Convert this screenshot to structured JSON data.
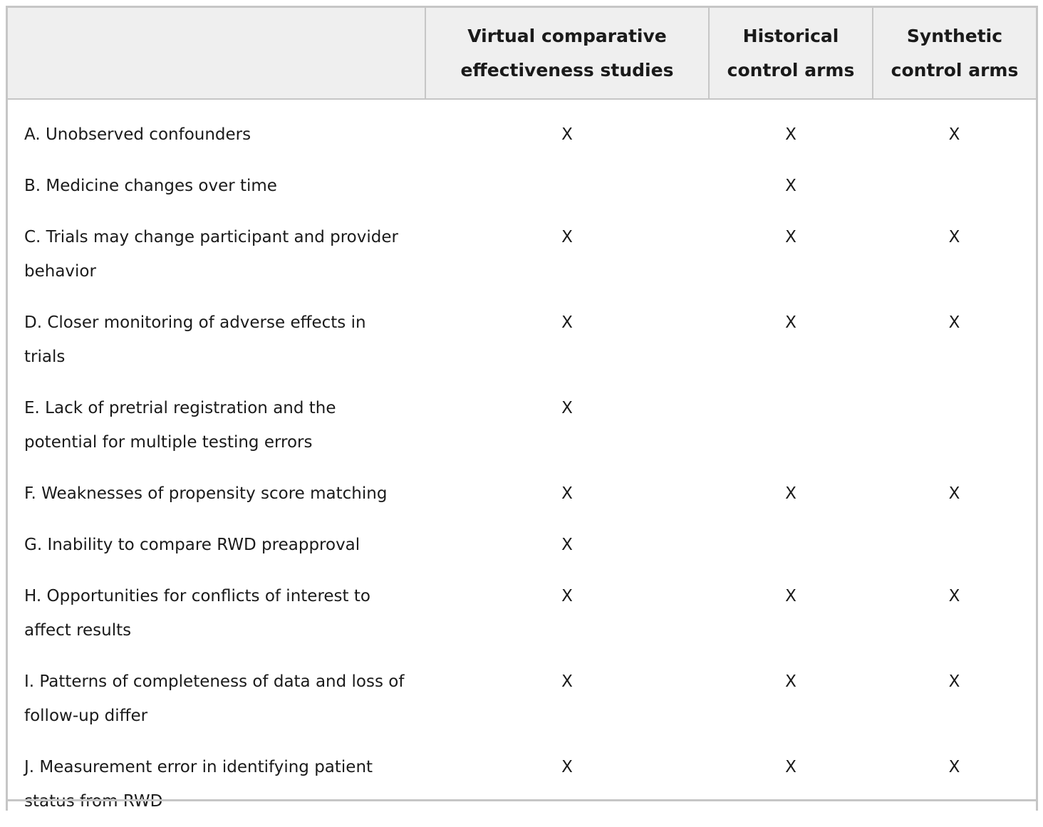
{
  "header": {
    "col0": "",
    "col1": "Virtual comparative effectiveness studies",
    "col2": "Historical control arms",
    "col3": "Synthetic control arms"
  },
  "rows": [
    {
      "label": "A. Unobserved confounders",
      "vces": "X",
      "hca": "X",
      "sca": "X"
    },
    {
      "label": "B. Medicine changes over time",
      "vces": "",
      "hca": "X",
      "sca": ""
    },
    {
      "label": "C. Trials may change participant and provider behavior",
      "vces": "X",
      "hca": "X",
      "sca": "X"
    },
    {
      "label": "D. Closer monitoring of adverse effects in trials",
      "vces": "X",
      "hca": "X",
      "sca": "X"
    },
    {
      "label": "E. Lack of pretrial registration and the potential for multiple testing errors",
      "vces": "X",
      "hca": "",
      "sca": ""
    },
    {
      "label": "F. Weaknesses of propensity score matching",
      "vces": "X",
      "hca": "X",
      "sca": "X"
    },
    {
      "label": "G. Inability to compare RWD preapproval",
      "vces": "X",
      "hca": "",
      "sca": ""
    },
    {
      "label": "H. Opportunities for conflicts of interest to affect results",
      "vces": "X",
      "hca": "X",
      "sca": "X"
    },
    {
      "label": "I. Patterns of completeness of data and loss of follow-up differ",
      "vces": "X",
      "hca": "X",
      "sca": "X"
    },
    {
      "label": "J. Measurement error in identifying patient status from RWD",
      "vces": "X",
      "hca": "X",
      "sca": "X"
    }
  ],
  "colors": {
    "header_bg": "#efefef",
    "border": "#c6c6c6",
    "text": "#1a1a1a"
  }
}
